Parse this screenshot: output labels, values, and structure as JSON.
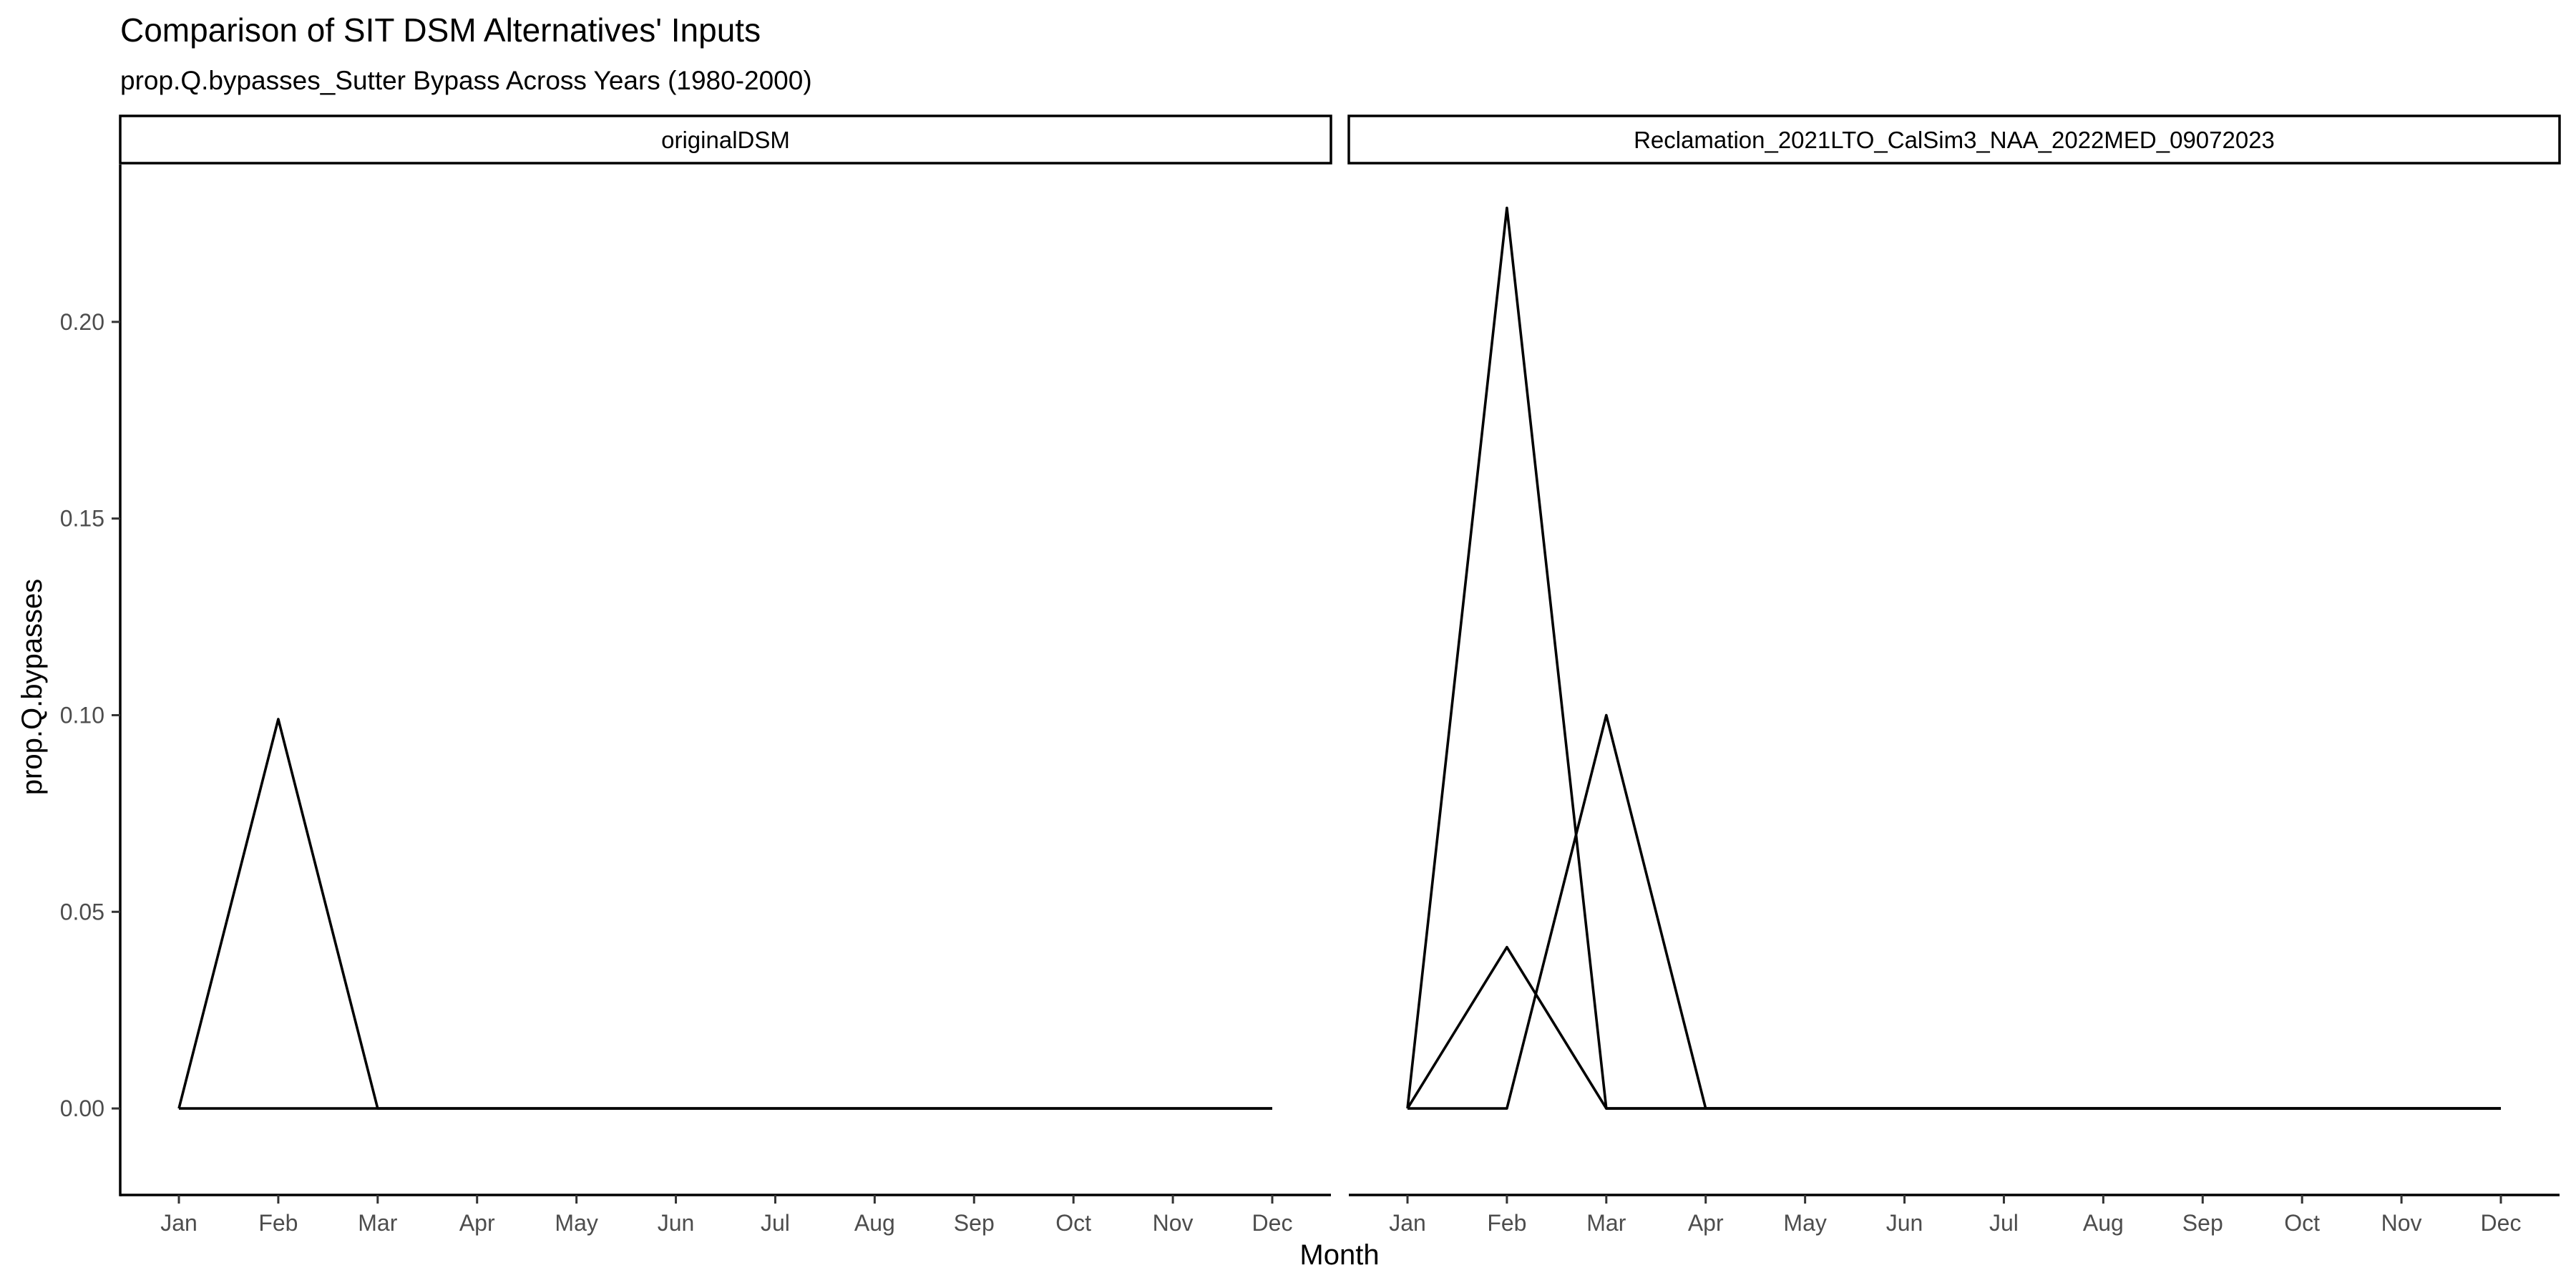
{
  "chart_data": {
    "type": "line",
    "title": "Comparison of SIT DSM Alternatives' Inputs",
    "subtitle": "prop.Q.bypasses_Sutter Bypass Across Years (1980-2000)",
    "xlabel": "Month",
    "ylabel": "prop.Q.bypasses",
    "x": [
      "Jan",
      "Feb",
      "Mar",
      "Apr",
      "May",
      "Jun",
      "Jul",
      "Aug",
      "Sep",
      "Oct",
      "Nov",
      "Dec"
    ],
    "ylim": [
      -0.022,
      0.24
    ],
    "yticks": [
      0.0,
      0.05,
      0.1,
      0.15,
      0.2
    ],
    "ytick_labels": [
      "0.00",
      "0.05",
      "0.10",
      "0.15",
      "0.20"
    ],
    "grid": false,
    "legend": "none",
    "line_color": "#000000",
    "panels": [
      {
        "label": "originalDSM",
        "series": [
          {
            "values": [
              0,
              0.099,
              0,
              0,
              0,
              0,
              0,
              0,
              0,
              0,
              0,
              0
            ]
          },
          {
            "values": [
              0,
              0,
              0,
              0,
              0,
              0,
              0,
              0,
              0,
              0,
              0,
              0
            ]
          }
        ]
      },
      {
        "label": "Reclamation_2021LTO_CalSim3_NAA_2022MED_09072023",
        "series": [
          {
            "values": [
              0,
              0.229,
              0,
              0,
              0,
              0,
              0,
              0,
              0,
              0,
              0,
              0
            ]
          },
          {
            "values": [
              0,
              0.041,
              0,
              0,
              0,
              0,
              0,
              0,
              0,
              0,
              0,
              0
            ]
          },
          {
            "values": [
              0,
              0,
              0.1,
              0,
              0,
              0,
              0,
              0,
              0,
              0,
              0,
              0
            ]
          }
        ]
      }
    ]
  }
}
